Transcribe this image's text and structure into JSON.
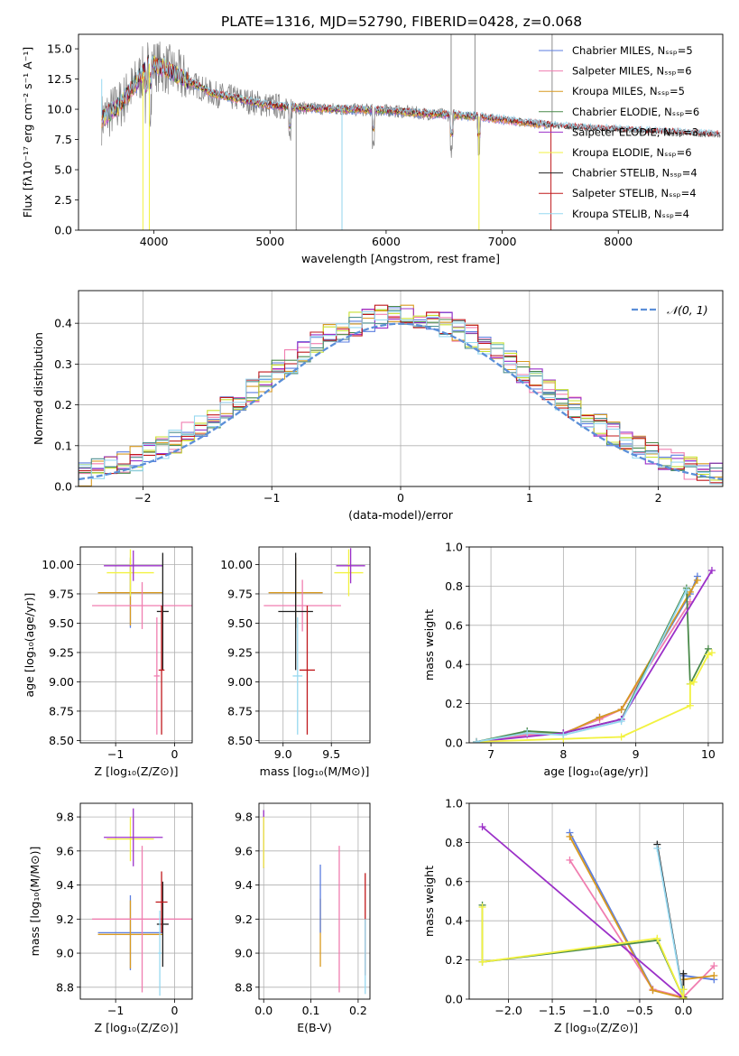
{
  "figure_title": "PLATE=1316, MJD=52790, FIBERID=0428, z=0.068",
  "colors": {
    "chabrier_miles": "#5b7ee0",
    "salpeter_miles": "#f07eb0",
    "kroupa_miles": "#d89a20",
    "chabrier_elodie": "#4a8a4a",
    "salpeter_elodie": "#9b30c8",
    "kroupa_elodie": "#f2f240",
    "chabrier_stelib": "#202020",
    "salpeter_stelib": "#c0181c",
    "kroupa_stelib": "#96d8f0",
    "kroupa_elodie_dark": "#c8e030",
    "normal_curve": "#5b8fd8",
    "grid": "#b0b0b0",
    "spectrum_grey": "#808080"
  },
  "chart_data": [
    {
      "type": "line",
      "id": "spectrum",
      "title": "PLATE=1316, MJD=52790, FIBERID=0428, z=0.068",
      "xlabel": "wavelength [Angstrom, rest frame]",
      "ylabel": "Flux [fλ10⁻¹⁷ erg cm⁻² s⁻¹ A⁻¹]",
      "xlim": [
        3350,
        8900
      ],
      "ylim": [
        0,
        16.2
      ],
      "xticks": [
        4000,
        5000,
        6000,
        7000,
        8000
      ],
      "yticks": [
        0.0,
        2.5,
        5.0,
        7.5,
        10.0,
        12.5,
        15.0
      ],
      "grid": false,
      "legend": "top-right",
      "legend_entries": [
        "Chabrier MILES, Nₛₛₚ=5",
        "Salpeter MILES, Nₛₛₚ=6",
        "Kroupa MILES, Nₛₛₚ=5",
        "Chabrier ELODIE, Nₛₛₚ=6",
        "Salpeter ELODIE, Nₛₛₚ=3",
        "Kroupa ELODIE, Nₛₛₚ=6",
        "Chabrier STELIB, Nₛₛₚ=4",
        "Salpeter STELIB, Nₛₛₚ=4",
        "Kroupa STELIB, Nₛₛₚ=4"
      ],
      "continuum": {
        "x": [
          3550,
          3700,
          3850,
          3950,
          4100,
          4300,
          4500,
          4800,
          5000,
          5300,
          5600,
          6000,
          6400,
          6800,
          7200,
          7600,
          8000,
          8400,
          8800
        ],
        "y": [
          9.2,
          10.3,
          12.2,
          13.8,
          13.4,
          12.3,
          11.3,
          10.7,
          10.3,
          10.1,
          10.0,
          9.9,
          9.6,
          9.4,
          8.9,
          8.5,
          8.3,
          8.1,
          7.9
        ]
      },
      "absorption_lines_x": [
        3934,
        3969,
        5170,
        5890,
        6563,
        6800
      ],
      "spikes": [
        {
          "x": 5225,
          "y": 0
        },
        {
          "x": 5620,
          "y": 0
        },
        {
          "x": 6560,
          "y": 16.2
        },
        {
          "x": 6765,
          "y": 16.2
        },
        {
          "x": 7430,
          "y": 16.2
        }
      ]
    },
    {
      "type": "line",
      "id": "residual_histogram",
      "xlabel": "(data-model)/error",
      "ylabel": "Normed distribution",
      "xlim": [
        -2.5,
        2.5
      ],
      "ylim": [
        0,
        0.48
      ],
      "xticks": [
        -2,
        -1,
        0,
        1,
        2
      ],
      "yticks": [
        0.0,
        0.1,
        0.2,
        0.3,
        0.4
      ],
      "grid": true,
      "legend": "top-right",
      "legend_entries": [
        "𝒩(0, 1)"
      ],
      "bin_width": 0.1,
      "normal_curve": {
        "mean": 0,
        "sigma": 1
      }
    },
    {
      "type": "scatter",
      "id": "age_vs_metallicity",
      "xlabel": "Z [log₁₀(Z/Z⊙)]",
      "ylabel": "age  [log₁₀(age/yr)]",
      "xlim": [
        -1.6,
        0.3
      ],
      "ylim": [
        8.48,
        10.15
      ],
      "xticks": [
        -1,
        0
      ],
      "yticks": [
        8.5,
        8.75,
        9.0,
        9.25,
        9.5,
        9.75,
        10.0
      ],
      "grid": true,
      "points": [
        {
          "x": -0.75,
          "y": 9.76,
          "xerr": 0.55,
          "yerr": 0.3,
          "series": "chabrier_miles"
        },
        {
          "x": -0.75,
          "y": 9.76,
          "xerr": 0.55,
          "yerr": 0.28,
          "series": "kroupa_miles"
        },
        {
          "x": -0.55,
          "y": 9.65,
          "xerr": 0.85,
          "yerr": 0.2,
          "series": "salpeter_miles"
        },
        {
          "x": -0.75,
          "y": 9.93,
          "xerr": 0.4,
          "yerr": 0.2,
          "series": "kroupa_elodie"
        },
        {
          "x": -0.7,
          "y": 9.99,
          "xerr": 0.5,
          "yerr": 0.13,
          "series": "salpeter_elodie"
        },
        {
          "x": -0.2,
          "y": 9.6,
          "xerr": 0.1,
          "yerr": 0.5,
          "series": "chabrier_stelib"
        },
        {
          "x": -0.22,
          "y": 9.1,
          "xerr": 0.05,
          "yerr": 0.55,
          "series": "salpeter_stelib"
        },
        {
          "x": -0.3,
          "y": 9.05,
          "xerr": 0.05,
          "yerr": 0.5,
          "series": "salpeter_miles"
        }
      ]
    },
    {
      "type": "scatter",
      "id": "age_vs_mass",
      "xlabel": "mass [log₁₀(M/M⊙)]",
      "ylabel": "",
      "xlim": [
        8.75,
        9.9
      ],
      "ylim": [
        8.48,
        10.15
      ],
      "xticks": [
        9.0,
        9.5
      ],
      "yticks": [
        8.5,
        8.75,
        9.0,
        9.25,
        9.5,
        9.75,
        10.0
      ],
      "grid": true,
      "points": [
        {
          "x": 9.13,
          "y": 9.76,
          "xerr": 0.28,
          "yerr": 0.3,
          "series": "chabrier_miles"
        },
        {
          "x": 9.13,
          "y": 9.76,
          "xerr": 0.28,
          "yerr": 0.3,
          "series": "kroupa_miles"
        },
        {
          "x": 9.2,
          "y": 9.65,
          "xerr": 0.4,
          "yerr": 0.22,
          "series": "salpeter_miles"
        },
        {
          "x": 9.68,
          "y": 9.93,
          "xerr": 0.15,
          "yerr": 0.2,
          "series": "kroupa_elodie"
        },
        {
          "x": 9.7,
          "y": 9.99,
          "xerr": 0.15,
          "yerr": 0.15,
          "series": "salpeter_elodie"
        },
        {
          "x": 9.13,
          "y": 9.6,
          "xerr": 0.18,
          "yerr": 0.5,
          "series": "chabrier_stelib"
        },
        {
          "x": 9.25,
          "y": 9.1,
          "xerr": 0.08,
          "yerr": 0.55,
          "series": "salpeter_stelib"
        },
        {
          "x": 9.15,
          "y": 9.05,
          "xerr": 0.05,
          "yerr": 0.5,
          "series": "kroupa_stelib"
        }
      ]
    },
    {
      "type": "line",
      "id": "mass_weight_vs_age",
      "xlabel": "age  [log₁₀(age/yr)]",
      "ylabel": "mass weight",
      "xlim": [
        6.7,
        10.2
      ],
      "ylim": [
        0,
        1
      ],
      "xticks": [
        7,
        8,
        9,
        10
      ],
      "yticks": [
        0.0,
        0.2,
        0.4,
        0.6,
        0.8,
        1.0
      ],
      "grid": true,
      "series": [
        {
          "key": "chabrier_miles",
          "x": [
            6.8,
            7.5,
            8.0,
            8.5,
            8.8,
            9.75,
            9.85
          ],
          "y": [
            0.005,
            0.05,
            0.045,
            0.13,
            0.17,
            0.76,
            0.85
          ]
        },
        {
          "key": "salpeter_miles",
          "x": [
            6.8,
            7.5,
            8.0,
            8.5,
            8.8,
            9.75
          ],
          "y": [
            0.005,
            0.04,
            0.05,
            0.12,
            0.17,
            0.72
          ]
        },
        {
          "key": "kroupa_miles",
          "x": [
            6.8,
            7.5,
            8.0,
            8.5,
            8.8,
            9.75,
            9.85
          ],
          "y": [
            0.005,
            0.05,
            0.045,
            0.13,
            0.17,
            0.77,
            0.83
          ]
        },
        {
          "key": "chabrier_elodie",
          "x": [
            6.8,
            7.5,
            8.0,
            8.8,
            9.7,
            9.75,
            10.0
          ],
          "y": [
            0.005,
            0.06,
            0.05,
            0.12,
            0.79,
            0.3,
            0.48
          ]
        },
        {
          "key": "salpeter_elodie",
          "x": [
            6.8,
            8.0,
            8.8,
            10.05
          ],
          "y": [
            0.005,
            0.05,
            0.12,
            0.88
          ]
        },
        {
          "key": "kroupa_elodie",
          "x": [
            6.8,
            8.0,
            8.8,
            9.75,
            9.75,
            9.8,
            10.0,
            10.05
          ],
          "y": [
            0.005,
            0.02,
            0.03,
            0.19,
            0.3,
            0.31,
            0.45,
            0.46
          ]
        },
        {
          "key": "kroupa_stelib",
          "x": [
            6.8,
            7.5,
            8.0,
            8.8,
            9.7
          ],
          "y": [
            0.005,
            0.05,
            0.04,
            0.11,
            0.78
          ]
        }
      ]
    },
    {
      "type": "scatter",
      "id": "mass_vs_metallicity",
      "xlabel": "Z [log₁₀(Z/Z⊙)]",
      "ylabel": "mass [log₁₀(M/M⊙)]",
      "xlim": [
        -1.6,
        0.3
      ],
      "ylim": [
        8.73,
        9.88
      ],
      "xticks": [
        -1,
        0
      ],
      "yticks": [
        8.8,
        9.0,
        9.2,
        9.4,
        9.6,
        9.8
      ],
      "grid": true,
      "points": [
        {
          "x": -0.75,
          "y": 9.12,
          "xerr": 0.55,
          "yerr": 0.22,
          "series": "chabrier_miles"
        },
        {
          "x": -0.75,
          "y": 9.11,
          "xerr": 0.55,
          "yerr": 0.2,
          "series": "kroupa_miles"
        },
        {
          "x": -0.55,
          "y": 9.2,
          "xerr": 0.85,
          "yerr": 0.43,
          "series": "salpeter_miles"
        },
        {
          "x": -0.75,
          "y": 9.67,
          "xerr": 0.4,
          "yerr": 0.13,
          "series": "kroupa_elodie"
        },
        {
          "x": -0.7,
          "y": 9.68,
          "xerr": 0.5,
          "yerr": 0.17,
          "series": "salpeter_elodie"
        },
        {
          "x": -0.2,
          "y": 9.17,
          "xerr": 0.1,
          "yerr": 0.25,
          "series": "chabrier_stelib"
        },
        {
          "x": -0.22,
          "y": 9.3,
          "xerr": 0.1,
          "yerr": 0.18,
          "series": "salpeter_stelib"
        },
        {
          "x": -0.25,
          "y": 9.0,
          "xerr": 0.03,
          "yerr": 0.25,
          "series": "kroupa_stelib"
        }
      ]
    },
    {
      "type": "scatter",
      "id": "mass_vs_ebv",
      "xlabel": "E(B-V)",
      "ylabel": "",
      "xlim": [
        -0.01,
        0.225
      ],
      "ylim": [
        8.73,
        9.88
      ],
      "xticks": [
        0.0,
        0.1,
        0.2
      ],
      "yticks": [
        8.8,
        9.0,
        9.2,
        9.4,
        9.6,
        9.8
      ],
      "grid": true,
      "points": [
        {
          "x": 0.0,
          "y": 9.67,
          "xerr": 0.0,
          "yerr": 0.17,
          "series": "salpeter_elodie"
        },
        {
          "x": 0.0,
          "y": 9.65,
          "xerr": 0.0,
          "yerr": 0.15,
          "series": "kroupa_elodie"
        },
        {
          "x": 0.12,
          "y": 9.12,
          "xerr": 0.0,
          "yerr": 0.2,
          "series": "kroupa_miles"
        },
        {
          "x": 0.12,
          "y": 9.32,
          "xerr": 0.0,
          "yerr": 0.2,
          "series": "chabrier_miles"
        },
        {
          "x": 0.16,
          "y": 9.2,
          "xerr": 0.0,
          "yerr": 0.43,
          "series": "salpeter_miles"
        },
        {
          "x": 0.215,
          "y": 9.17,
          "xerr": 0.0,
          "yerr": 0.3,
          "series": "salpeter_stelib"
        },
        {
          "x": 0.215,
          "y": 8.98,
          "xerr": 0.0,
          "yerr": 0.22,
          "series": "kroupa_stelib"
        }
      ]
    },
    {
      "type": "line",
      "id": "mass_weight_vs_metallicity",
      "xlabel": "Z [log₁₀(Z/Z⊙)]",
      "ylabel": "mass weight",
      "xlim": [
        -2.45,
        0.45
      ],
      "ylim": [
        0,
        1
      ],
      "xticks": [
        -2.0,
        -1.5,
        -1.0,
        -0.5,
        0.0
      ],
      "yticks": [
        0.0,
        0.2,
        0.4,
        0.6,
        0.8,
        1.0
      ],
      "grid": true,
      "series": [
        {
          "key": "chabrier_miles",
          "x": [
            -1.3,
            -0.35,
            0.0,
            0.0,
            0.35
          ],
          "y": [
            0.85,
            0.05,
            0.005,
            0.12,
            0.1
          ]
        },
        {
          "key": "salpeter_miles",
          "x": [
            -1.3,
            -0.35,
            0.0,
            0.35
          ],
          "y": [
            0.71,
            0.05,
            0.01,
            0.17
          ]
        },
        {
          "key": "kroupa_miles",
          "x": [
            -1.3,
            -0.35,
            0.0,
            0.0,
            0.35
          ],
          "y": [
            0.83,
            0.045,
            0.005,
            0.1,
            0.12
          ]
        },
        {
          "key": "chabrier_stelib",
          "x": [
            -0.3,
            0.0,
            0.0
          ],
          "y": [
            0.79,
            0.01,
            0.13
          ]
        },
        {
          "key": "kroupa_stelib",
          "x": [
            -0.3,
            0.0
          ],
          "y": [
            0.77,
            0.005
          ]
        },
        {
          "key": "salpeter_elodie",
          "x": [
            -2.3,
            0.0
          ],
          "y": [
            0.88,
            0.005
          ]
        },
        {
          "key": "chabrier_elodie",
          "x": [
            -2.3,
            -2.3,
            -0.3,
            0.0,
            0.0
          ],
          "y": [
            0.48,
            0.19,
            0.3,
            0.005,
            0.05
          ]
        },
        {
          "key": "kroupa_elodie",
          "x": [
            -2.3,
            -2.3,
            -0.3,
            0.0,
            0.0
          ],
          "y": [
            0.47,
            0.19,
            0.31,
            0.005,
            0.05
          ]
        }
      ]
    }
  ]
}
